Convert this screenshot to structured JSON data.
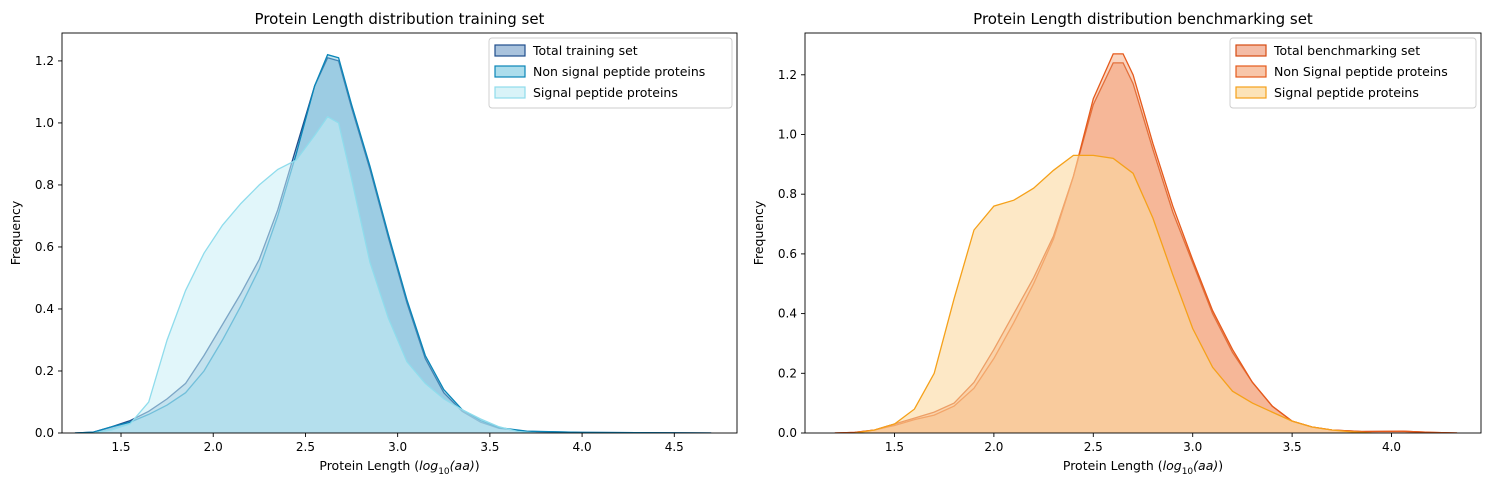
{
  "chart_data": [
    {
      "type": "area",
      "title": "Protein Length distribution training set",
      "xlabel_pre": "Protein Length (",
      "xlabel_math": "log",
      "xlabel_sub": "10",
      "xlabel_arg": "(aa)",
      "xlabel_post": ")",
      "ylabel": "Frequency",
      "xlim": [
        1.18,
        4.84
      ],
      "ylim": [
        0,
        1.29
      ],
      "xticks": [
        1.5,
        2.0,
        2.5,
        3.0,
        3.5,
        4.0,
        4.5
      ],
      "xtick_labels": [
        "1.5",
        "2.0",
        "2.5",
        "3.0",
        "3.5",
        "4.0",
        "4.5"
      ],
      "yticks": [
        0.0,
        0.2,
        0.4,
        0.6,
        0.8,
        1.0,
        1.2
      ],
      "ytick_labels": [
        "0.0",
        "0.2",
        "0.4",
        "0.6",
        "0.8",
        "1.0",
        "1.2"
      ],
      "legend_position": "upper right",
      "series": [
        {
          "name": "Total training set",
          "fill": "#6f9bc6",
          "fill_opacity": 0.45,
          "stroke": "#1f4e8c",
          "points": [
            [
              1.25,
              0
            ],
            [
              1.35,
              0.003
            ],
            [
              1.45,
              0.02
            ],
            [
              1.55,
              0.04
            ],
            [
              1.65,
              0.07
            ],
            [
              1.75,
              0.11
            ],
            [
              1.85,
              0.16
            ],
            [
              1.95,
              0.25
            ],
            [
              2.05,
              0.35
            ],
            [
              2.15,
              0.45
            ],
            [
              2.25,
              0.56
            ],
            [
              2.35,
              0.72
            ],
            [
              2.45,
              0.92
            ],
            [
              2.55,
              1.12
            ],
            [
              2.62,
              1.21
            ],
            [
              2.68,
              1.2
            ],
            [
              2.75,
              1.05
            ],
            [
              2.85,
              0.85
            ],
            [
              2.95,
              0.63
            ],
            [
              3.05,
              0.42
            ],
            [
              3.15,
              0.24
            ],
            [
              3.25,
              0.13
            ],
            [
              3.35,
              0.07
            ],
            [
              3.45,
              0.035
            ],
            [
              3.55,
              0.015
            ],
            [
              3.7,
              0.005
            ],
            [
              4.0,
              0.002
            ],
            [
              4.3,
              0.001
            ],
            [
              4.7,
              0
            ]
          ]
        },
        {
          "name": "Non signal peptide proteins",
          "fill": "#74c6e0",
          "fill_opacity": 0.45,
          "stroke": "#0a86b8",
          "points": [
            [
              1.25,
              0
            ],
            [
              1.35,
              0.003
            ],
            [
              1.45,
              0.02
            ],
            [
              1.55,
              0.035
            ],
            [
              1.65,
              0.06
            ],
            [
              1.75,
              0.09
            ],
            [
              1.85,
              0.13
            ],
            [
              1.95,
              0.2
            ],
            [
              2.05,
              0.3
            ],
            [
              2.15,
              0.41
            ],
            [
              2.25,
              0.53
            ],
            [
              2.35,
              0.7
            ],
            [
              2.45,
              0.9
            ],
            [
              2.55,
              1.12
            ],
            [
              2.62,
              1.22
            ],
            [
              2.68,
              1.21
            ],
            [
              2.75,
              1.06
            ],
            [
              2.85,
              0.86
            ],
            [
              2.95,
              0.64
            ],
            [
              3.05,
              0.43
            ],
            [
              3.15,
              0.25
            ],
            [
              3.25,
              0.14
            ],
            [
              3.35,
              0.075
            ],
            [
              3.45,
              0.04
            ],
            [
              3.55,
              0.017
            ],
            [
              3.7,
              0.006
            ],
            [
              4.0,
              0.002
            ],
            [
              4.3,
              0.001
            ],
            [
              4.7,
              0
            ]
          ]
        },
        {
          "name": "Signal peptide proteins",
          "fill": "#c9eef5",
          "fill_opacity": 0.55,
          "stroke": "#8fdcec",
          "points": [
            [
              1.35,
              0
            ],
            [
              1.45,
              0.01
            ],
            [
              1.55,
              0.03
            ],
            [
              1.65,
              0.1
            ],
            [
              1.75,
              0.3
            ],
            [
              1.85,
              0.46
            ],
            [
              1.95,
              0.58
            ],
            [
              2.05,
              0.67
            ],
            [
              2.15,
              0.74
            ],
            [
              2.25,
              0.8
            ],
            [
              2.35,
              0.85
            ],
            [
              2.45,
              0.88
            ],
            [
              2.55,
              0.96
            ],
            [
              2.62,
              1.02
            ],
            [
              2.68,
              1.0
            ],
            [
              2.75,
              0.82
            ],
            [
              2.85,
              0.55
            ],
            [
              2.95,
              0.37
            ],
            [
              3.05,
              0.23
            ],
            [
              3.15,
              0.16
            ],
            [
              3.25,
              0.11
            ],
            [
              3.35,
              0.075
            ],
            [
              3.45,
              0.045
            ],
            [
              3.55,
              0.02
            ],
            [
              3.65,
              0.005
            ],
            [
              3.75,
              0
            ]
          ]
        }
      ]
    },
    {
      "type": "area",
      "title": "Protein Length distribution benchmarking set",
      "xlabel_pre": "Protein Length (",
      "xlabel_math": "log",
      "xlabel_sub": "10",
      "xlabel_arg": "(aa)",
      "xlabel_post": ")",
      "ylabel": "Frequency",
      "xlim": [
        1.05,
        4.45
      ],
      "ylim": [
        0,
        1.34
      ],
      "xticks": [
        1.5,
        2.0,
        2.5,
        3.0,
        3.5,
        4.0
      ],
      "xtick_labels": [
        "1.5",
        "2.0",
        "2.5",
        "3.0",
        "3.5",
        "4.0"
      ],
      "yticks": [
        0.0,
        0.2,
        0.4,
        0.6,
        0.8,
        1.0,
        1.2
      ],
      "ytick_labels": [
        "0.0",
        "0.2",
        "0.4",
        "0.6",
        "0.8",
        "1.0",
        "1.2"
      ],
      "legend_position": "upper right",
      "series": [
        {
          "name": "Total benchmarking set",
          "fill": "#f0a080",
          "fill_opacity": 0.55,
          "stroke": "#d64a12",
          "points": [
            [
              1.2,
              0
            ],
            [
              1.3,
              0.002
            ],
            [
              1.4,
              0.01
            ],
            [
              1.5,
              0.03
            ],
            [
              1.6,
              0.05
            ],
            [
              1.7,
              0.07
            ],
            [
              1.8,
              0.1
            ],
            [
              1.9,
              0.17
            ],
            [
              2.0,
              0.28
            ],
            [
              2.1,
              0.4
            ],
            [
              2.2,
              0.52
            ],
            [
              2.3,
              0.66
            ],
            [
              2.4,
              0.86
            ],
            [
              2.5,
              1.1
            ],
            [
              2.6,
              1.24
            ],
            [
              2.65,
              1.24
            ],
            [
              2.7,
              1.17
            ],
            [
              2.8,
              0.95
            ],
            [
              2.9,
              0.74
            ],
            [
              3.0,
              0.57
            ],
            [
              3.1,
              0.4
            ],
            [
              3.2,
              0.27
            ],
            [
              3.3,
              0.17
            ],
            [
              3.4,
              0.09
            ],
            [
              3.5,
              0.04
            ],
            [
              3.6,
              0.02
            ],
            [
              3.7,
              0.01
            ],
            [
              3.85,
              0.005
            ],
            [
              4.05,
              0.006
            ],
            [
              4.2,
              0.002
            ],
            [
              4.33,
              0
            ]
          ]
        },
        {
          "name": "Non Signal peptide proteins",
          "fill": "#f4a070",
          "fill_opacity": 0.45,
          "stroke": "#e55a1c",
          "points": [
            [
              1.2,
              0
            ],
            [
              1.3,
              0.002
            ],
            [
              1.4,
              0.01
            ],
            [
              1.5,
              0.025
            ],
            [
              1.6,
              0.045
            ],
            [
              1.7,
              0.06
            ],
            [
              1.8,
              0.09
            ],
            [
              1.9,
              0.15
            ],
            [
              2.0,
              0.25
            ],
            [
              2.1,
              0.37
            ],
            [
              2.2,
              0.5
            ],
            [
              2.3,
              0.65
            ],
            [
              2.4,
              0.86
            ],
            [
              2.5,
              1.12
            ],
            [
              2.6,
              1.27
            ],
            [
              2.65,
              1.27
            ],
            [
              2.7,
              1.2
            ],
            [
              2.8,
              0.97
            ],
            [
              2.9,
              0.76
            ],
            [
              3.0,
              0.58
            ],
            [
              3.1,
              0.41
            ],
            [
              3.2,
              0.28
            ],
            [
              3.3,
              0.17
            ],
            [
              3.4,
              0.09
            ],
            [
              3.5,
              0.04
            ],
            [
              3.6,
              0.02
            ],
            [
              3.7,
              0.01
            ],
            [
              3.85,
              0.005
            ],
            [
              4.05,
              0.006
            ],
            [
              4.2,
              0.002
            ],
            [
              4.33,
              0
            ]
          ]
        },
        {
          "name": "Signal peptide proteins",
          "fill": "#fbd9a0",
          "fill_opacity": 0.6,
          "stroke": "#f5a11a",
          "points": [
            [
              1.3,
              0
            ],
            [
              1.4,
              0.01
            ],
            [
              1.5,
              0.03
            ],
            [
              1.6,
              0.08
            ],
            [
              1.7,
              0.2
            ],
            [
              1.8,
              0.45
            ],
            [
              1.9,
              0.68
            ],
            [
              2.0,
              0.76
            ],
            [
              2.1,
              0.78
            ],
            [
              2.2,
              0.82
            ],
            [
              2.3,
              0.88
            ],
            [
              2.4,
              0.93
            ],
            [
              2.5,
              0.93
            ],
            [
              2.6,
              0.92
            ],
            [
              2.7,
              0.87
            ],
            [
              2.8,
              0.72
            ],
            [
              2.9,
              0.53
            ],
            [
              3.0,
              0.35
            ],
            [
              3.1,
              0.22
            ],
            [
              3.2,
              0.14
            ],
            [
              3.3,
              0.1
            ],
            [
              3.4,
              0.07
            ],
            [
              3.5,
              0.04
            ],
            [
              3.6,
              0.02
            ],
            [
              3.7,
              0.01
            ],
            [
              3.8,
              0.004
            ],
            [
              3.9,
              0
            ]
          ]
        }
      ]
    }
  ]
}
